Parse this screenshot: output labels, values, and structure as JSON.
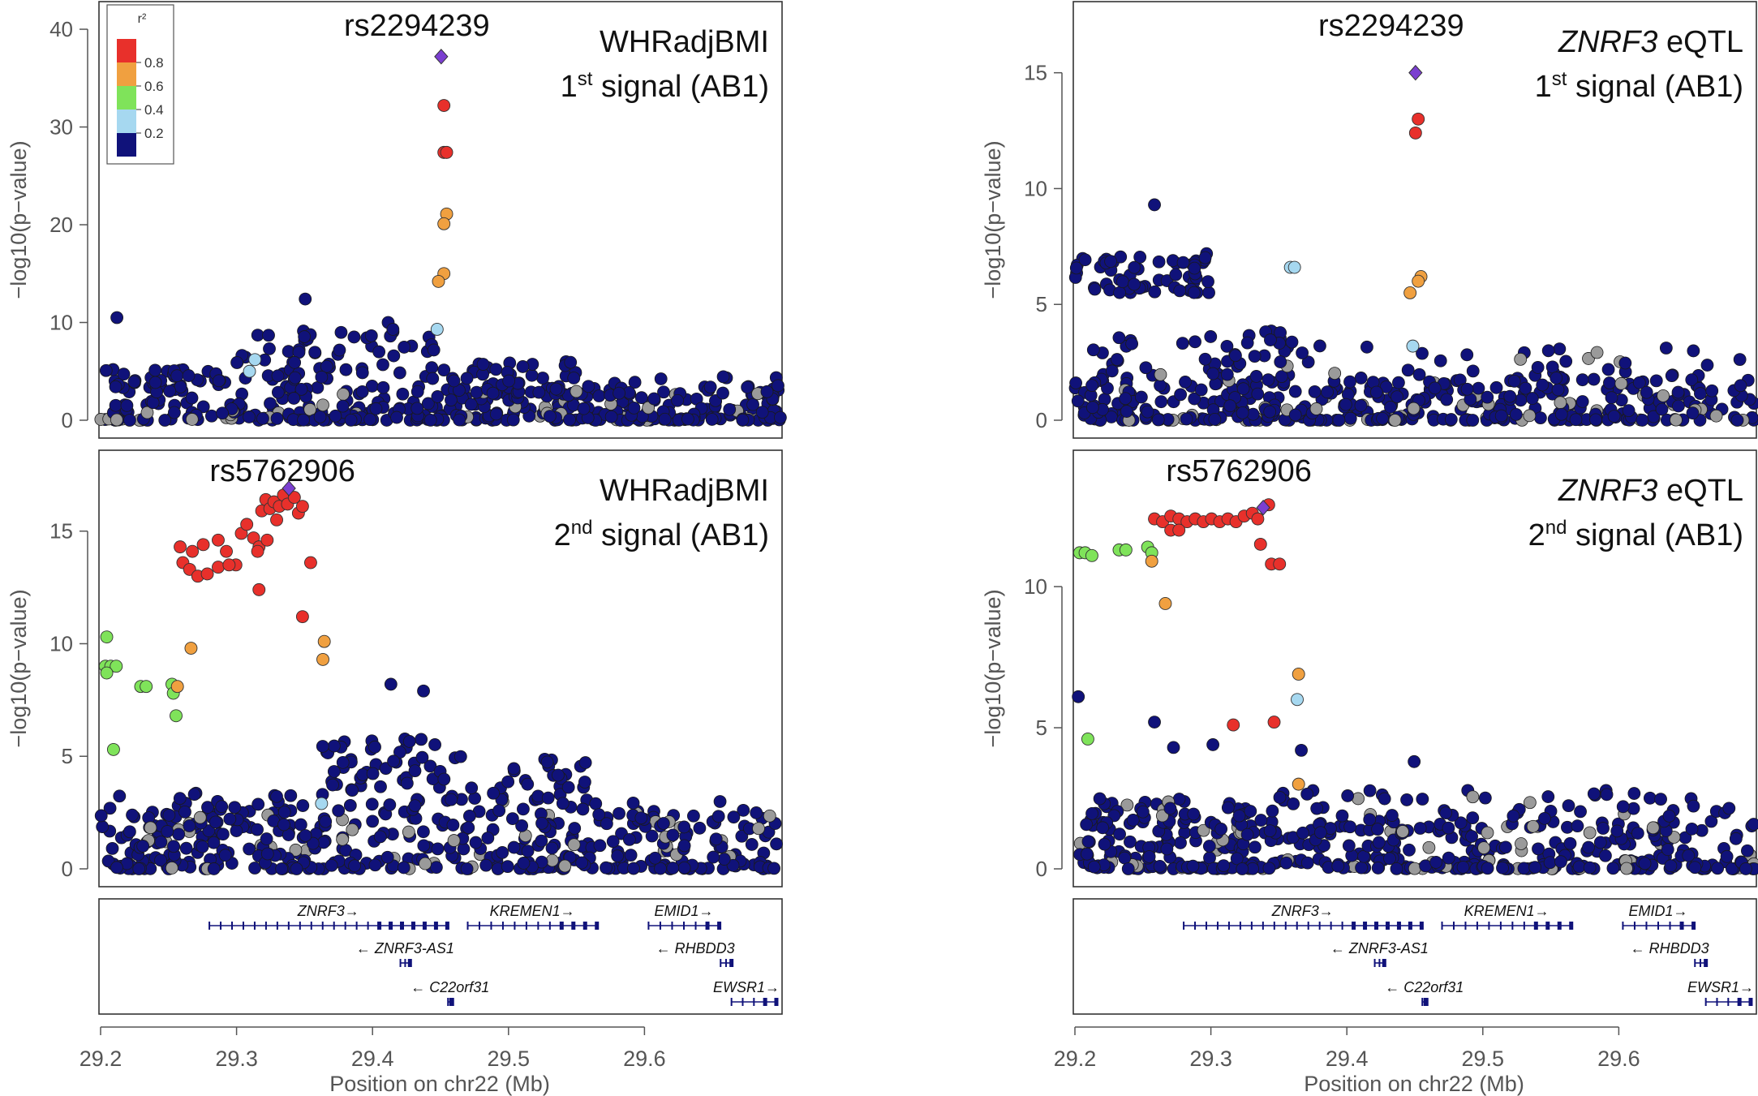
{
  "colors": {
    "r2_bins": [
      "#e8302b",
      "#f0a040",
      "#7fe35a",
      "#a6d8f0",
      "#10127a"
    ],
    "lead": "#7b3fd0",
    "grey": "#9a9a9a",
    "gene": "#10127a"
  },
  "legend": {
    "title": "r²",
    "ticks": [
      "0.8",
      "0.6",
      "0.4",
      "0.2"
    ]
  },
  "x_axis": {
    "xlim": [
      29.2,
      29.7
    ],
    "ticks": [
      "29.2",
      "29.3",
      "29.4",
      "29.5",
      "29.6"
    ],
    "label": "Position on chr22 (Mb)"
  },
  "chart_data": [
    {
      "type": "scatter",
      "name": "whr-signal-1",
      "lead_snp": "rs2294239",
      "trait": "WHRadjBMI",
      "trait_italic": false,
      "trait_suffix": "",
      "signal_num": "1",
      "signal_sup": "st",
      "signal_rest": " signal (AB1)",
      "ylabel": "−log10(p−value)",
      "ylim": [
        0,
        41
      ],
      "yticks": [
        "0",
        "10",
        "20",
        "30",
        "40"
      ],
      "show_legend": true,
      "lead": {
        "x": 29.4505,
        "y": 37.2
      },
      "highlighted": [
        {
          "x": 29.4525,
          "y": 32.2,
          "r2": 0
        },
        {
          "x": 29.4525,
          "y": 27.4,
          "r2": 0
        },
        {
          "x": 29.4545,
          "y": 27.4,
          "r2": 0
        },
        {
          "x": 29.4545,
          "y": 21.1,
          "r2": 1
        },
        {
          "x": 29.4525,
          "y": 20.1,
          "r2": 1
        },
        {
          "x": 29.4525,
          "y": 15.0,
          "r2": 1
        },
        {
          "x": 29.4485,
          "y": 14.2,
          "r2": 1
        },
        {
          "x": 29.4475,
          "y": 9.3,
          "r2": 3
        },
        {
          "x": 29.3135,
          "y": 6.2,
          "r2": 3
        },
        {
          "x": 29.3095,
          "y": 5.0,
          "r2": 3
        }
      ],
      "notable": [
        {
          "x": 29.212,
          "y": 10.5
        },
        {
          "x": 29.3505,
          "y": 12.4
        },
        {
          "x": 29.4115,
          "y": 10.0
        },
        {
          "x": 29.415,
          "y": 9.3
        }
      ],
      "background": {
        "seed": 11,
        "base": 1.6,
        "clusters": [
          {
            "from": 29.2,
            "to": 29.3,
            "n": 40,
            "lo": 2.5,
            "hi": 5.5
          },
          {
            "from": 29.3,
            "to": 29.45,
            "n": 60,
            "lo": 4,
            "hi": 9.2
          },
          {
            "from": 29.45,
            "to": 29.55,
            "n": 45,
            "lo": 2.5,
            "hi": 6
          },
          {
            "from": 29.55,
            "to": 29.7,
            "n": 25,
            "lo": 2,
            "hi": 4.5
          }
        ]
      }
    },
    {
      "type": "scatter",
      "name": "znrf3-eqtl-signal-1",
      "lead_snp": "rs2294239",
      "trait": "ZNRF3",
      "trait_italic": true,
      "trait_suffix": " eQTL",
      "signal_num": "1",
      "signal_sup": "st",
      "signal_rest": " signal (AB1)",
      "ylabel": "−log10(p−value)",
      "ylim": [
        0,
        17.3
      ],
      "yticks": [
        "0",
        "5",
        "10",
        "15"
      ],
      "show_legend": false,
      "lead": {
        "x": 29.4505,
        "y": 15.0
      },
      "highlighted": [
        {
          "x": 29.4525,
          "y": 13.0,
          "r2": 0
        },
        {
          "x": 29.4505,
          "y": 12.4,
          "r2": 0
        },
        {
          "x": 29.4545,
          "y": 6.2,
          "r2": 1
        },
        {
          "x": 29.4525,
          "y": 6.0,
          "r2": 1
        },
        {
          "x": 29.4465,
          "y": 5.5,
          "r2": 1
        },
        {
          "x": 29.4485,
          "y": 3.2,
          "r2": 3
        },
        {
          "x": 29.3585,
          "y": 6.6,
          "r2": 3
        },
        {
          "x": 29.3615,
          "y": 6.6,
          "r2": 3
        }
      ],
      "notable": [
        {
          "x": 29.2585,
          "y": 9.3
        }
      ],
      "background": {
        "seed": 23,
        "base": 0.9,
        "clusters": [
          {
            "from": 29.2,
            "to": 29.3,
            "n": 60,
            "lo": 5.5,
            "hi": 7.2
          },
          {
            "from": 29.2,
            "to": 29.36,
            "n": 40,
            "lo": 1.5,
            "hi": 4
          },
          {
            "from": 29.3,
            "to": 29.4,
            "n": 30,
            "lo": 0.2,
            "hi": 3.5
          },
          {
            "from": 29.4,
            "to": 29.7,
            "n": 45,
            "lo": 0.8,
            "hi": 3.2
          }
        ]
      }
    },
    {
      "type": "scatter",
      "name": "whr-signal-2",
      "lead_snp": "rs5762906",
      "trait": "WHRadjBMI",
      "trait_italic": false,
      "trait_suffix": "",
      "signal_num": "2",
      "signal_sup": "nd",
      "signal_rest": " signal (AB1)",
      "ylabel": "−log10(p−value)",
      "ylim": [
        0,
        17.8
      ],
      "yticks": [
        "0",
        "5",
        "10",
        "15"
      ],
      "show_legend": false,
      "lead": {
        "x": 29.3385,
        "y": 16.9
      },
      "highlighted": [
        {
          "x": 29.2585,
          "y": 14.3,
          "r2": 0
        },
        {
          "x": 29.2675,
          "y": 14.1,
          "r2": 0
        },
        {
          "x": 29.2755,
          "y": 14.4,
          "r2": 0
        },
        {
          "x": 29.2865,
          "y": 14.6,
          "r2": 0
        },
        {
          "x": 29.2925,
          "y": 14.1,
          "r2": 0
        },
        {
          "x": 29.2995,
          "y": 13.5,
          "r2": 0
        },
        {
          "x": 29.2605,
          "y": 13.6,
          "r2": 0
        },
        {
          "x": 29.2655,
          "y": 13.3,
          "r2": 0
        },
        {
          "x": 29.2715,
          "y": 13.0,
          "r2": 0
        },
        {
          "x": 29.2785,
          "y": 13.1,
          "r2": 0
        },
        {
          "x": 29.2865,
          "y": 13.4,
          "r2": 0
        },
        {
          "x": 29.2945,
          "y": 13.5,
          "r2": 0
        },
        {
          "x": 29.3035,
          "y": 14.9,
          "r2": 0
        },
        {
          "x": 29.3075,
          "y": 15.3,
          "r2": 0
        },
        {
          "x": 29.3125,
          "y": 14.7,
          "r2": 0
        },
        {
          "x": 29.3165,
          "y": 14.3,
          "r2": 0
        },
        {
          "x": 29.3185,
          "y": 15.9,
          "r2": 0
        },
        {
          "x": 29.3215,
          "y": 16.4,
          "r2": 0
        },
        {
          "x": 29.3245,
          "y": 16.0,
          "r2": 0
        },
        {
          "x": 29.3275,
          "y": 16.3,
          "r2": 0
        },
        {
          "x": 29.3295,
          "y": 15.5,
          "r2": 0
        },
        {
          "x": 29.3315,
          "y": 16.1,
          "r2": 0
        },
        {
          "x": 29.3345,
          "y": 16.6,
          "r2": 0
        },
        {
          "x": 29.3375,
          "y": 16.2,
          "r2": 0
        },
        {
          "x": 29.3425,
          "y": 16.5,
          "r2": 0
        },
        {
          "x": 29.3455,
          "y": 15.8,
          "r2": 0
        },
        {
          "x": 29.3485,
          "y": 16.1,
          "r2": 0
        },
        {
          "x": 29.3225,
          "y": 14.6,
          "r2": 0
        },
        {
          "x": 29.3155,
          "y": 14.1,
          "r2": 0
        },
        {
          "x": 29.3165,
          "y": 12.4,
          "r2": 0
        },
        {
          "x": 29.3545,
          "y": 13.6,
          "r2": 0
        },
        {
          "x": 29.3485,
          "y": 11.2,
          "r2": 0
        },
        {
          "x": 29.3645,
          "y": 10.1,
          "r2": 1
        },
        {
          "x": 29.3635,
          "y": 9.3,
          "r2": 1
        },
        {
          "x": 29.2665,
          "y": 9.8,
          "r2": 1
        },
        {
          "x": 29.2565,
          "y": 8.1,
          "r2": 1
        },
        {
          "x": 29.2045,
          "y": 10.3,
          "r2": 2
        },
        {
          "x": 29.2035,
          "y": 9.0,
          "r2": 2
        },
        {
          "x": 29.2075,
          "y": 9.0,
          "r2": 2
        },
        {
          "x": 29.2115,
          "y": 9.0,
          "r2": 2
        },
        {
          "x": 29.2045,
          "y": 8.7,
          "r2": 2
        },
        {
          "x": 29.2295,
          "y": 8.1,
          "r2": 2
        },
        {
          "x": 29.2335,
          "y": 8.1,
          "r2": 2
        },
        {
          "x": 29.2525,
          "y": 8.2,
          "r2": 2
        },
        {
          "x": 29.2535,
          "y": 7.8,
          "r2": 2
        },
        {
          "x": 29.2555,
          "y": 6.8,
          "r2": 2
        },
        {
          "x": 29.2095,
          "y": 5.3,
          "r2": 2
        },
        {
          "x": 29.3625,
          "y": 2.9,
          "r2": 3
        }
      ],
      "notable": [
        {
          "x": 29.4135,
          "y": 8.2
        },
        {
          "x": 29.4375,
          "y": 7.9
        }
      ],
      "background": {
        "seed": 37,
        "base": 1.2,
        "clusters": [
          {
            "from": 29.2,
            "to": 29.35,
            "n": 45,
            "lo": 1.5,
            "hi": 3.5
          },
          {
            "from": 29.36,
            "to": 29.45,
            "n": 55,
            "lo": 2.5,
            "hi": 5.8
          },
          {
            "from": 29.45,
            "to": 29.56,
            "n": 50,
            "lo": 1.8,
            "hi": 5
          },
          {
            "from": 29.56,
            "to": 29.7,
            "n": 25,
            "lo": 1,
            "hi": 3.5
          }
        ]
      }
    },
    {
      "type": "scatter",
      "name": "znrf3-eqtl-signal-2",
      "lead_snp": "rs5762906",
      "trait": "ZNRF3",
      "trait_italic": true,
      "trait_suffix": " eQTL",
      "signal_num": "2",
      "signal_sup": "nd",
      "signal_rest": " signal (AB1)",
      "ylabel": "−log10(p−value)",
      "ylim": [
        0,
        14.2
      ],
      "yticks": [
        "0",
        "5",
        "10"
      ],
      "show_legend": false,
      "lead": {
        "x": 29.3385,
        "y": 12.8
      },
      "highlighted": [
        {
          "x": 29.2585,
          "y": 12.4,
          "r2": 0
        },
        {
          "x": 29.2645,
          "y": 12.3,
          "r2": 0
        },
        {
          "x": 29.2705,
          "y": 12.5,
          "r2": 0
        },
        {
          "x": 29.2765,
          "y": 12.4,
          "r2": 0
        },
        {
          "x": 29.2825,
          "y": 12.3,
          "r2": 0
        },
        {
          "x": 29.2885,
          "y": 12.4,
          "r2": 0
        },
        {
          "x": 29.2945,
          "y": 12.3,
          "r2": 0
        },
        {
          "x": 29.3005,
          "y": 12.4,
          "r2": 0
        },
        {
          "x": 29.3065,
          "y": 12.3,
          "r2": 0
        },
        {
          "x": 29.3125,
          "y": 12.4,
          "r2": 0
        },
        {
          "x": 29.3185,
          "y": 12.3,
          "r2": 0
        },
        {
          "x": 29.3245,
          "y": 12.5,
          "r2": 0
        },
        {
          "x": 29.3305,
          "y": 12.6,
          "r2": 0
        },
        {
          "x": 29.3345,
          "y": 12.4,
          "r2": 0
        },
        {
          "x": 29.3425,
          "y": 12.9,
          "r2": 0
        },
        {
          "x": 29.3365,
          "y": 11.5,
          "r2": 0
        },
        {
          "x": 29.3445,
          "y": 10.8,
          "r2": 0
        },
        {
          "x": 29.3505,
          "y": 10.8,
          "r2": 0
        },
        {
          "x": 29.2705,
          "y": 12.0,
          "r2": 0
        },
        {
          "x": 29.2765,
          "y": 12.0,
          "r2": 0
        },
        {
          "x": 29.3165,
          "y": 5.1,
          "r2": 0
        },
        {
          "x": 29.3465,
          "y": 5.2,
          "r2": 0
        },
        {
          "x": 29.2565,
          "y": 10.9,
          "r2": 1
        },
        {
          "x": 29.2665,
          "y": 9.4,
          "r2": 1
        },
        {
          "x": 29.3645,
          "y": 6.9,
          "r2": 1
        },
        {
          "x": 29.3645,
          "y": 3.0,
          "r2": 1
        },
        {
          "x": 29.2035,
          "y": 11.2,
          "r2": 2
        },
        {
          "x": 29.2075,
          "y": 11.2,
          "r2": 2
        },
        {
          "x": 29.2125,
          "y": 11.1,
          "r2": 2
        },
        {
          "x": 29.2325,
          "y": 11.3,
          "r2": 2
        },
        {
          "x": 29.2375,
          "y": 11.3,
          "r2": 2
        },
        {
          "x": 29.2535,
          "y": 11.4,
          "r2": 2
        },
        {
          "x": 29.2565,
          "y": 11.2,
          "r2": 2
        },
        {
          "x": 29.2095,
          "y": 4.6,
          "r2": 2
        },
        {
          "x": 29.3635,
          "y": 6.0,
          "r2": 3
        }
      ],
      "notable": [
        {
          "x": 29.2025,
          "y": 6.1
        },
        {
          "x": 29.2585,
          "y": 5.2
        },
        {
          "x": 29.2725,
          "y": 4.3
        },
        {
          "x": 29.3015,
          "y": 4.4
        },
        {
          "x": 29.3665,
          "y": 4.2
        },
        {
          "x": 29.4495,
          "y": 3.8
        }
      ],
      "background": {
        "seed": 53,
        "base": 0.8,
        "clusters": [
          {
            "from": 29.2,
            "to": 29.35,
            "n": 60,
            "lo": 1.2,
            "hi": 2.5
          },
          {
            "from": 29.35,
            "to": 29.45,
            "n": 30,
            "lo": 0.8,
            "hi": 2.8
          },
          {
            "from": 29.45,
            "to": 29.7,
            "n": 50,
            "lo": 1.2,
            "hi": 2.8
          }
        ]
      }
    }
  ],
  "genes": [
    {
      "name": "ZNRF3",
      "dir": "→",
      "start": 29.28,
      "end": 29.455,
      "row": 0
    },
    {
      "name": "KREMEN1",
      "dir": "→",
      "start": 29.47,
      "end": 29.565,
      "row": 0
    },
    {
      "name": "EMID1",
      "dir": "→",
      "start": 29.603,
      "end": 29.655,
      "row": 0
    },
    {
      "name": "ZNRF3-AS1",
      "dir": "←",
      "start": 29.4205,
      "end": 29.4275,
      "row": 1
    },
    {
      "name": "RHBDD3",
      "dir": "←",
      "start": 29.656,
      "end": 29.664,
      "row": 1
    },
    {
      "name": "C22orf31",
      "dir": "←",
      "start": 29.4555,
      "end": 29.4585,
      "row": 2
    },
    {
      "name": "EWSR1",
      "dir": "→",
      "start": 29.664,
      "end": 29.697,
      "row": 2
    }
  ]
}
